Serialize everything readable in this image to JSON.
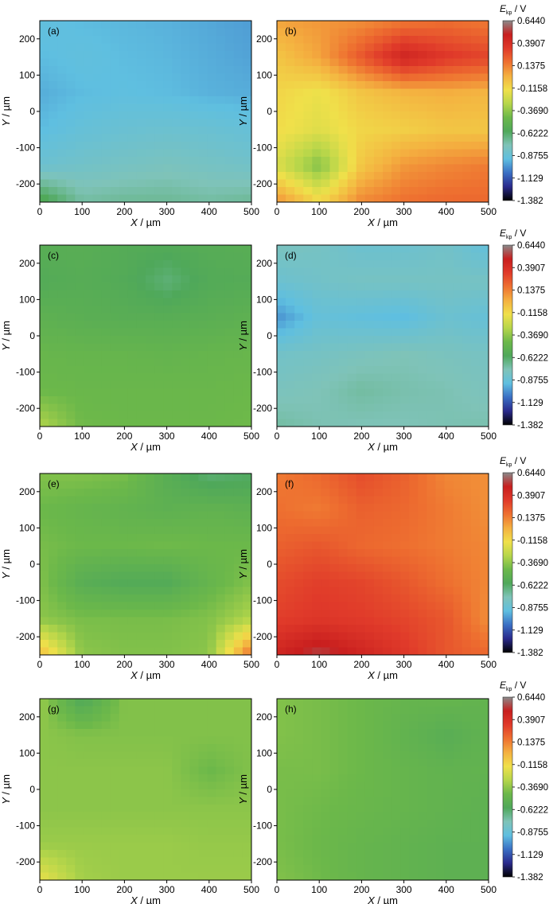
{
  "chart_data": [
    {
      "panel_label": "(a)",
      "type": "heatmap",
      "xlabel_var": "X",
      "xlabel_unit": " / µm",
      "ylabel_var": "Y",
      "ylabel_unit": " / µm",
      "xlim": [
        0,
        500
      ],
      "ylim": [
        -250,
        250
      ],
      "xticks": [
        "0",
        "100",
        "200",
        "300",
        "400",
        "500"
      ],
      "yticks": [
        "200",
        "100",
        "0",
        "-100",
        "-200"
      ],
      "x": [
        0,
        100,
        200,
        300,
        400,
        500
      ],
      "y": [
        250,
        150,
        50,
        -50,
        -150,
        -250
      ],
      "z": [
        [
          -0.9,
          -0.92,
          -0.93,
          -0.94,
          -0.96,
          -0.98
        ],
        [
          -0.92,
          -0.9,
          -0.92,
          -0.93,
          -0.95,
          -0.97
        ],
        [
          -0.95,
          -0.92,
          -0.91,
          -0.92,
          -0.94,
          -0.95
        ],
        [
          -0.92,
          -0.88,
          -0.86,
          -0.85,
          -0.86,
          -0.88
        ],
        [
          -0.85,
          -0.82,
          -0.8,
          -0.78,
          -0.8,
          -0.82
        ],
        [
          -0.55,
          -0.72,
          -0.7,
          -0.7,
          -0.72,
          -0.7
        ]
      ]
    },
    {
      "panel_label": "(b)",
      "type": "heatmap",
      "xlabel_var": "X",
      "xlabel_unit": " / µm",
      "ylabel_var": "Y",
      "ylabel_unit": " / µm",
      "xlim": [
        0,
        500
      ],
      "ylim": [
        -250,
        250
      ],
      "xticks": [
        "0",
        "100",
        "200",
        "300",
        "400",
        "500"
      ],
      "yticks": [
        "200",
        "100",
        "0",
        "-100",
        "-200"
      ],
      "x": [
        0,
        100,
        200,
        300,
        400,
        500
      ],
      "y": [
        250,
        150,
        50,
        -50,
        -150,
        -250
      ],
      "z": [
        [
          0.05,
          0.08,
          0.1,
          0.15,
          0.18,
          0.15
        ],
        [
          -0.05,
          0.05,
          0.25,
          0.45,
          0.35,
          0.3
        ],
        [
          -0.1,
          -0.15,
          -0.05,
          0.0,
          0.02,
          0.0
        ],
        [
          -0.12,
          -0.18,
          -0.1,
          -0.08,
          -0.05,
          -0.05
        ],
        [
          -0.2,
          -0.4,
          -0.05,
          0.08,
          0.12,
          0.15
        ],
        [
          0.1,
          -0.1,
          0.12,
          0.18,
          0.2,
          0.2
        ]
      ]
    },
    {
      "panel_label": "(c)",
      "type": "heatmap",
      "xlabel_var": "X",
      "xlabel_unit": " / µm",
      "ylabel_var": "Y",
      "ylabel_unit": " / µm",
      "xlim": [
        0,
        500
      ],
      "ylim": [
        -250,
        250
      ],
      "xticks": [
        "0",
        "100",
        "200",
        "300",
        "400",
        "500"
      ],
      "yticks": [
        "200",
        "100",
        "0",
        "-100",
        "-200"
      ],
      "x": [
        0,
        100,
        200,
        300,
        400,
        500
      ],
      "y": [
        250,
        150,
        50,
        -50,
        -150,
        -250
      ],
      "z": [
        [
          -0.55,
          -0.55,
          -0.57,
          -0.58,
          -0.56,
          -0.55
        ],
        [
          -0.58,
          -0.56,
          -0.58,
          -0.65,
          -0.58,
          -0.57
        ],
        [
          -0.52,
          -0.54,
          -0.55,
          -0.55,
          -0.54,
          -0.52
        ],
        [
          -0.47,
          -0.48,
          -0.48,
          -0.49,
          -0.48,
          -0.47
        ],
        [
          -0.45,
          -0.46,
          -0.46,
          -0.46,
          -0.46,
          -0.45
        ],
        [
          -0.3,
          -0.44,
          -0.45,
          -0.45,
          -0.45,
          -0.44
        ]
      ]
    },
    {
      "panel_label": "(d)",
      "type": "heatmap",
      "xlabel_var": "X",
      "xlabel_unit": " / µm",
      "ylabel_var": "Y",
      "ylabel_unit": " / µm",
      "xlim": [
        0,
        500
      ],
      "ylim": [
        -250,
        250
      ],
      "xticks": [
        "0",
        "100",
        "200",
        "300",
        "400",
        "500"
      ],
      "yticks": [
        "200",
        "100",
        "0",
        "-100",
        "-200"
      ],
      "x": [
        0,
        100,
        200,
        300,
        400,
        500
      ],
      "y": [
        250,
        150,
        50,
        -50,
        -150,
        -250
      ],
      "z": [
        [
          -0.78,
          -0.8,
          -0.85,
          -0.85,
          -0.82,
          -0.9
        ],
        [
          -0.85,
          -0.82,
          -0.8,
          -0.8,
          -0.8,
          -0.8
        ],
        [
          -1.0,
          -0.88,
          -0.9,
          -0.92,
          -0.85,
          -0.88
        ],
        [
          -0.82,
          -0.8,
          -0.78,
          -0.76,
          -0.78,
          -0.8
        ],
        [
          -0.78,
          -0.76,
          -0.72,
          -0.74,
          -0.75,
          -0.78
        ],
        [
          -0.72,
          -0.75,
          -0.76,
          -0.76,
          -0.75,
          -0.74
        ]
      ]
    },
    {
      "panel_label": "(e)",
      "type": "heatmap",
      "xlabel_var": "X",
      "xlabel_unit": " / µm",
      "ylabel_var": "Y",
      "ylabel_unit": " / µm",
      "xlim": [
        0,
        500
      ],
      "ylim": [
        -250,
        250
      ],
      "xticks": [
        "0",
        "100",
        "200",
        "300",
        "400",
        "500"
      ],
      "yticks": [
        "200",
        "100",
        "0",
        "-100",
        "-200"
      ],
      "x": [
        0,
        100,
        200,
        300,
        400,
        500
      ],
      "y": [
        250,
        150,
        50,
        -50,
        -150,
        -250
      ],
      "z": [
        [
          -0.4,
          -0.4,
          -0.42,
          -0.55,
          -0.65,
          -0.62
        ],
        [
          -0.45,
          -0.48,
          -0.5,
          -0.52,
          -0.5,
          -0.52
        ],
        [
          -0.42,
          -0.45,
          -0.45,
          -0.44,
          -0.45,
          -0.45
        ],
        [
          -0.4,
          -0.55,
          -0.58,
          -0.58,
          -0.48,
          -0.4
        ],
        [
          -0.38,
          -0.42,
          -0.42,
          -0.42,
          -0.4,
          -0.3
        ],
        [
          0.0,
          -0.38,
          -0.4,
          -0.4,
          -0.38,
          0.2
        ]
      ]
    },
    {
      "panel_label": "(f)",
      "type": "heatmap",
      "xlabel_var": "X",
      "xlabel_unit": " / µm",
      "ylabel_var": "Y",
      "ylabel_unit": " / µm",
      "xlim": [
        0,
        500
      ],
      "ylim": [
        -250,
        250
      ],
      "xticks": [
        "0",
        "100",
        "200",
        "300",
        "400",
        "500"
      ],
      "yticks": [
        "200",
        "100",
        "0",
        "-100",
        "-200"
      ],
      "x": [
        0,
        100,
        200,
        300,
        400,
        500
      ],
      "y": [
        250,
        150,
        50,
        -50,
        -150,
        -250
      ],
      "z": [
        [
          0.15,
          0.2,
          0.28,
          0.22,
          0.12,
          0.1
        ],
        [
          0.18,
          0.15,
          0.22,
          0.2,
          0.15,
          0.1
        ],
        [
          0.22,
          0.25,
          0.2,
          0.18,
          0.15,
          0.12
        ],
        [
          0.28,
          0.32,
          0.3,
          0.25,
          0.18,
          0.12
        ],
        [
          0.32,
          0.35,
          0.33,
          0.3,
          0.25,
          0.1
        ],
        [
          0.45,
          0.55,
          0.45,
          0.35,
          0.25,
          0.2
        ]
      ]
    },
    {
      "panel_label": "(g)",
      "type": "heatmap",
      "xlabel_var": "X",
      "xlabel_unit": " / µm",
      "ylabel_var": "Y",
      "ylabel_unit": " / µm",
      "xlim": [
        0,
        500
      ],
      "ylim": [
        -250,
        250
      ],
      "xticks": [
        "0",
        "100",
        "200",
        "300",
        "400",
        "500"
      ],
      "yticks": [
        "200",
        "100",
        "0",
        "-100",
        "-200"
      ],
      "x": [
        0,
        100,
        200,
        300,
        400,
        500
      ],
      "y": [
        250,
        150,
        50,
        -50,
        -150,
        -250
      ],
      "z": [
        [
          -0.35,
          -0.6,
          -0.4,
          -0.4,
          -0.4,
          -0.4
        ],
        [
          -0.38,
          -0.4,
          -0.4,
          -0.4,
          -0.4,
          -0.4
        ],
        [
          -0.38,
          -0.38,
          -0.38,
          -0.38,
          -0.45,
          -0.4
        ],
        [
          -0.38,
          -0.38,
          -0.38,
          -0.38,
          -0.38,
          -0.38
        ],
        [
          -0.35,
          -0.35,
          -0.35,
          -0.35,
          -0.36,
          -0.36
        ],
        [
          -0.15,
          -0.33,
          -0.35,
          -0.35,
          -0.35,
          -0.35
        ]
      ]
    },
    {
      "panel_label": "(h)",
      "type": "heatmap",
      "xlabel_var": "X",
      "xlabel_unit": " / µm",
      "ylabel_var": "Y",
      "ylabel_unit": " / µm",
      "xlim": [
        0,
        500
      ],
      "ylim": [
        -250,
        250
      ],
      "xticks": [
        "0",
        "100",
        "200",
        "300",
        "400",
        "500"
      ],
      "yticks": [
        "200",
        "100",
        "0",
        "-100",
        "-200"
      ],
      "x": [
        0,
        100,
        200,
        300,
        400,
        500
      ],
      "y": [
        250,
        150,
        50,
        -50,
        -150,
        -250
      ],
      "z": [
        [
          -0.4,
          -0.42,
          -0.45,
          -0.48,
          -0.48,
          -0.5
        ],
        [
          -0.4,
          -0.42,
          -0.45,
          -0.5,
          -0.55,
          -0.5
        ],
        [
          -0.42,
          -0.42,
          -0.45,
          -0.48,
          -0.5,
          -0.5
        ],
        [
          -0.42,
          -0.44,
          -0.46,
          -0.48,
          -0.5,
          -0.52
        ],
        [
          -0.42,
          -0.45,
          -0.48,
          -0.5,
          -0.52,
          -0.52
        ],
        [
          -0.4,
          -0.44,
          -0.48,
          -0.5,
          -0.52,
          -0.52
        ]
      ]
    }
  ],
  "colorbar": {
    "label_symbol": "E",
    "label_sub": "kp",
    "label_unit": " / V",
    "ticks": [
      "0.6440",
      "0.3907",
      "0.1375",
      "-0.1158",
      "-0.3690",
      "-0.6222",
      "-0.8755",
      "-1.129",
      "-1.382"
    ],
    "range": [
      -1.382,
      0.644
    ],
    "stops": [
      "#000000",
      "#2a2a8c",
      "#3a6fc4",
      "#5fbfe0",
      "#7fc3b8",
      "#4fa85a",
      "#6cb84a",
      "#b6d64a",
      "#f0e04a",
      "#f4b040",
      "#ee7030",
      "#e03a2a",
      "#c81e1e",
      "#8a8a8a"
    ]
  }
}
